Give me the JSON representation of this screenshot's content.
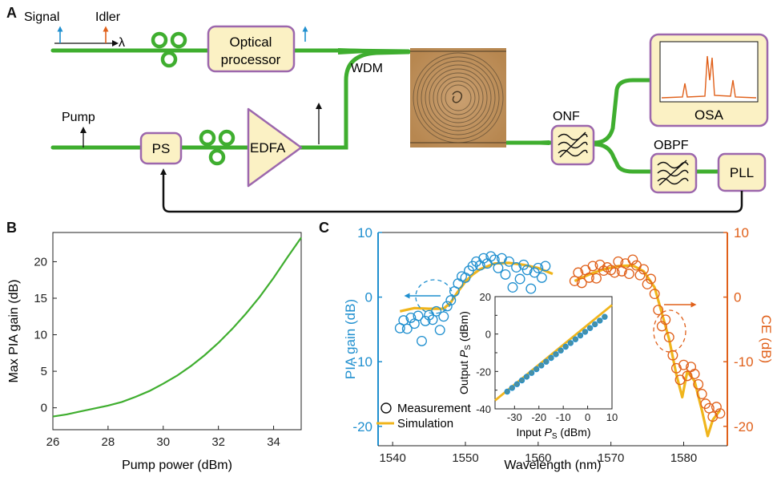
{
  "panels": {
    "a": "A",
    "b": "B",
    "c": "C"
  },
  "setup": {
    "signal": "Signal",
    "idler": "Idler",
    "lambda": "λ",
    "optical_processor_line1": "Optical",
    "optical_processor_line2": "processor",
    "wdm": "WDM",
    "pump": "Pump",
    "ps": "PS",
    "edfa": "EDFA",
    "onf": "ONF",
    "obpf": "OBPF",
    "osa": "OSA",
    "pll": "PLL"
  },
  "colors": {
    "fiber": "#3fae2f",
    "box_fill": "#fbf1c4",
    "box_border": "#9c67ad",
    "blue": "#1f8fcf",
    "orange": "#e0601a",
    "sim": "#f0b51c"
  },
  "chart_data": [
    {
      "type": "line",
      "xlabel": "Pump power (dBm)",
      "ylabel": "Max PIA gain (dB)",
      "xlim": [
        26,
        35
      ],
      "ylim": [
        -3,
        24
      ],
      "xticks": [
        26,
        28,
        30,
        32,
        34
      ],
      "yticks": [
        0,
        5,
        10,
        15,
        20
      ],
      "series": [
        {
          "color": "#3fae2f",
          "x": [
            26,
            26.5,
            27,
            27.5,
            28,
            28.5,
            29,
            29.5,
            30,
            30.5,
            31,
            31.5,
            32,
            32.5,
            33,
            33.5,
            34,
            34.5,
            35
          ],
          "y": [
            -1.2,
            -0.9,
            -0.5,
            -0.1,
            0.3,
            0.8,
            1.5,
            2.3,
            3.3,
            4.4,
            5.7,
            7.2,
            8.9,
            10.8,
            12.9,
            15.2,
            17.8,
            20.6,
            23.3
          ]
        }
      ]
    },
    {
      "type": "scatter",
      "xlabel": "Wavelength (nm)",
      "ylabel_left": "PIA gain (dB)",
      "ylabel_right": "CE (dB)",
      "xlim": [
        1538,
        1586
      ],
      "ylim": [
        -23,
        10
      ],
      "xticks": [
        1540,
        1550,
        1560,
        1570,
        1580
      ],
      "yticks": [
        -20,
        -10,
        0,
        10
      ],
      "legend": [
        "Measurement",
        "Simulation"
      ],
      "series": [
        {
          "name": "Measurement",
          "axis": "left",
          "color": "#1f8fcf",
          "x": [
            1541,
            1541.5,
            1542,
            1542.5,
            1543,
            1543.5,
            1544,
            1544.5,
            1545,
            1545.5,
            1546,
            1546.5,
            1547,
            1547.5,
            1548,
            1548.5,
            1549,
            1549.5,
            1550,
            1550.5,
            1551,
            1551.5,
            1552,
            1552.5,
            1553,
            1553.5,
            1554,
            1554.5,
            1555,
            1555.5,
            1556,
            1556.5,
            1557,
            1557.5,
            1558,
            1558.5,
            1559,
            1559.5,
            1560,
            1560.5,
            1561
          ],
          "y": [
            -4.8,
            -3.6,
            -4.9,
            -3.2,
            -4.1,
            -2.9,
            -6.8,
            -3.7,
            -2.8,
            -3.5,
            -2.2,
            -5.1,
            -3.0,
            -1.4,
            -0.5,
            0.9,
            2.1,
            3.2,
            3.0,
            4.1,
            4.8,
            5.5,
            4.9,
            6.0,
            5.2,
            6.3,
            5.8,
            4.5,
            6.0,
            3.5,
            5.5,
            1.5,
            4.6,
            2.8,
            5.0,
            4.2,
            1.3,
            3.8,
            4.5,
            3.0,
            4.8
          ]
        },
        {
          "name": "Simulation",
          "axis": "left",
          "color": "#f0b51c",
          "x": [
            1541,
            1543,
            1545,
            1547,
            1548,
            1549,
            1550,
            1551,
            1552,
            1554,
            1556,
            1558,
            1560,
            1562
          ],
          "y": [
            -2.2,
            -1.7,
            -1.8,
            -1.8,
            -0.8,
            0.9,
            2.4,
            3.5,
            4.3,
            5.2,
            5.3,
            5.0,
            4.5,
            3.6
          ]
        },
        {
          "name": "Measurement",
          "axis": "right",
          "color": "#e0601a",
          "x": [
            1565,
            1565.5,
            1566,
            1566.5,
            1567,
            1567.5,
            1568,
            1568.5,
            1569,
            1569.5,
            1570,
            1570.5,
            1571,
            1571.5,
            1572,
            1572.5,
            1573,
            1573.5,
            1574,
            1574.5,
            1575,
            1575.5,
            1576,
            1576.5,
            1577,
            1577.5,
            1578,
            1578.5,
            1579,
            1579.5,
            1580,
            1580.5,
            1581,
            1581.5,
            1582,
            1582.5,
            1583,
            1583.5,
            1584,
            1584.5,
            1585
          ],
          "y": [
            2.5,
            3.8,
            2.2,
            4.2,
            3.0,
            4.8,
            2.9,
            5.0,
            4.1,
            4.6,
            4.2,
            3.8,
            5.5,
            4.0,
            5.2,
            3.6,
            5.8,
            4.9,
            3.4,
            4.3,
            2.0,
            2.8,
            0.5,
            -2.0,
            -4.5,
            -3.5,
            -6.2,
            -9.0,
            -11.0,
            -12.8,
            -10.5,
            -12.2,
            -10.8,
            -11.9,
            -13.5,
            -15.0,
            -16.5,
            -17.2,
            -18.5,
            -17.0,
            -18.0
          ]
        },
        {
          "name": "Simulation",
          "axis": "right",
          "color": "#f0b51c",
          "x": [
            1565,
            1567,
            1569,
            1571,
            1573,
            1574.5,
            1576,
            1577,
            1578,
            1579,
            1579.8,
            1580.5,
            1581.5,
            1582.5,
            1583.3,
            1584,
            1585
          ],
          "y": [
            2.5,
            3.5,
            4.3,
            4.8,
            4.9,
            4.0,
            1.5,
            -2.5,
            -6.5,
            -12.0,
            -15.5,
            -11.5,
            -13.0,
            -17.5,
            -21.5,
            -19.0,
            -17.5
          ]
        }
      ],
      "inset": {
        "type": "scatter",
        "xlabel": "Input P_S (dBm)",
        "ylabel": "Output P_S (dBm)",
        "xlabel_main": "Input ",
        "xlabel_sym": "P",
        "xlabel_sub": "S",
        "xlabel_unit": " (dBm)",
        "ylabel_main": "Output ",
        "ylabel_sym": "P",
        "ylabel_sub": "S",
        "ylabel_unit": " (dBm)",
        "xlim": [
          -38,
          10
        ],
        "ylim": [
          -40,
          20
        ],
        "xticks": [
          -30,
          -20,
          -10,
          0,
          10
        ],
        "yticks": [
          -40,
          -20,
          0,
          20
        ],
        "yticks_minor": [
          -30,
          -10,
          10
        ],
        "points_x": [
          -33,
          -31,
          -29,
          -27,
          -25,
          -23,
          -21,
          -19,
          -17,
          -15,
          -13,
          -11,
          -9,
          -7,
          -5,
          -3,
          -1,
          1,
          3,
          5,
          7
        ],
        "points_y": [
          -30.8,
          -28.8,
          -26.8,
          -24.8,
          -22.8,
          -20.8,
          -18.8,
          -16.8,
          -14.8,
          -12.8,
          -10.8,
          -8.8,
          -6.8,
          -4.8,
          -2.8,
          -0.8,
          1.2,
          3.2,
          5.2,
          7.2,
          9.2
        ],
        "fit_x": [
          -38,
          10
        ],
        "fit_y": [
          -35.5,
          15.5
        ]
      }
    }
  ]
}
